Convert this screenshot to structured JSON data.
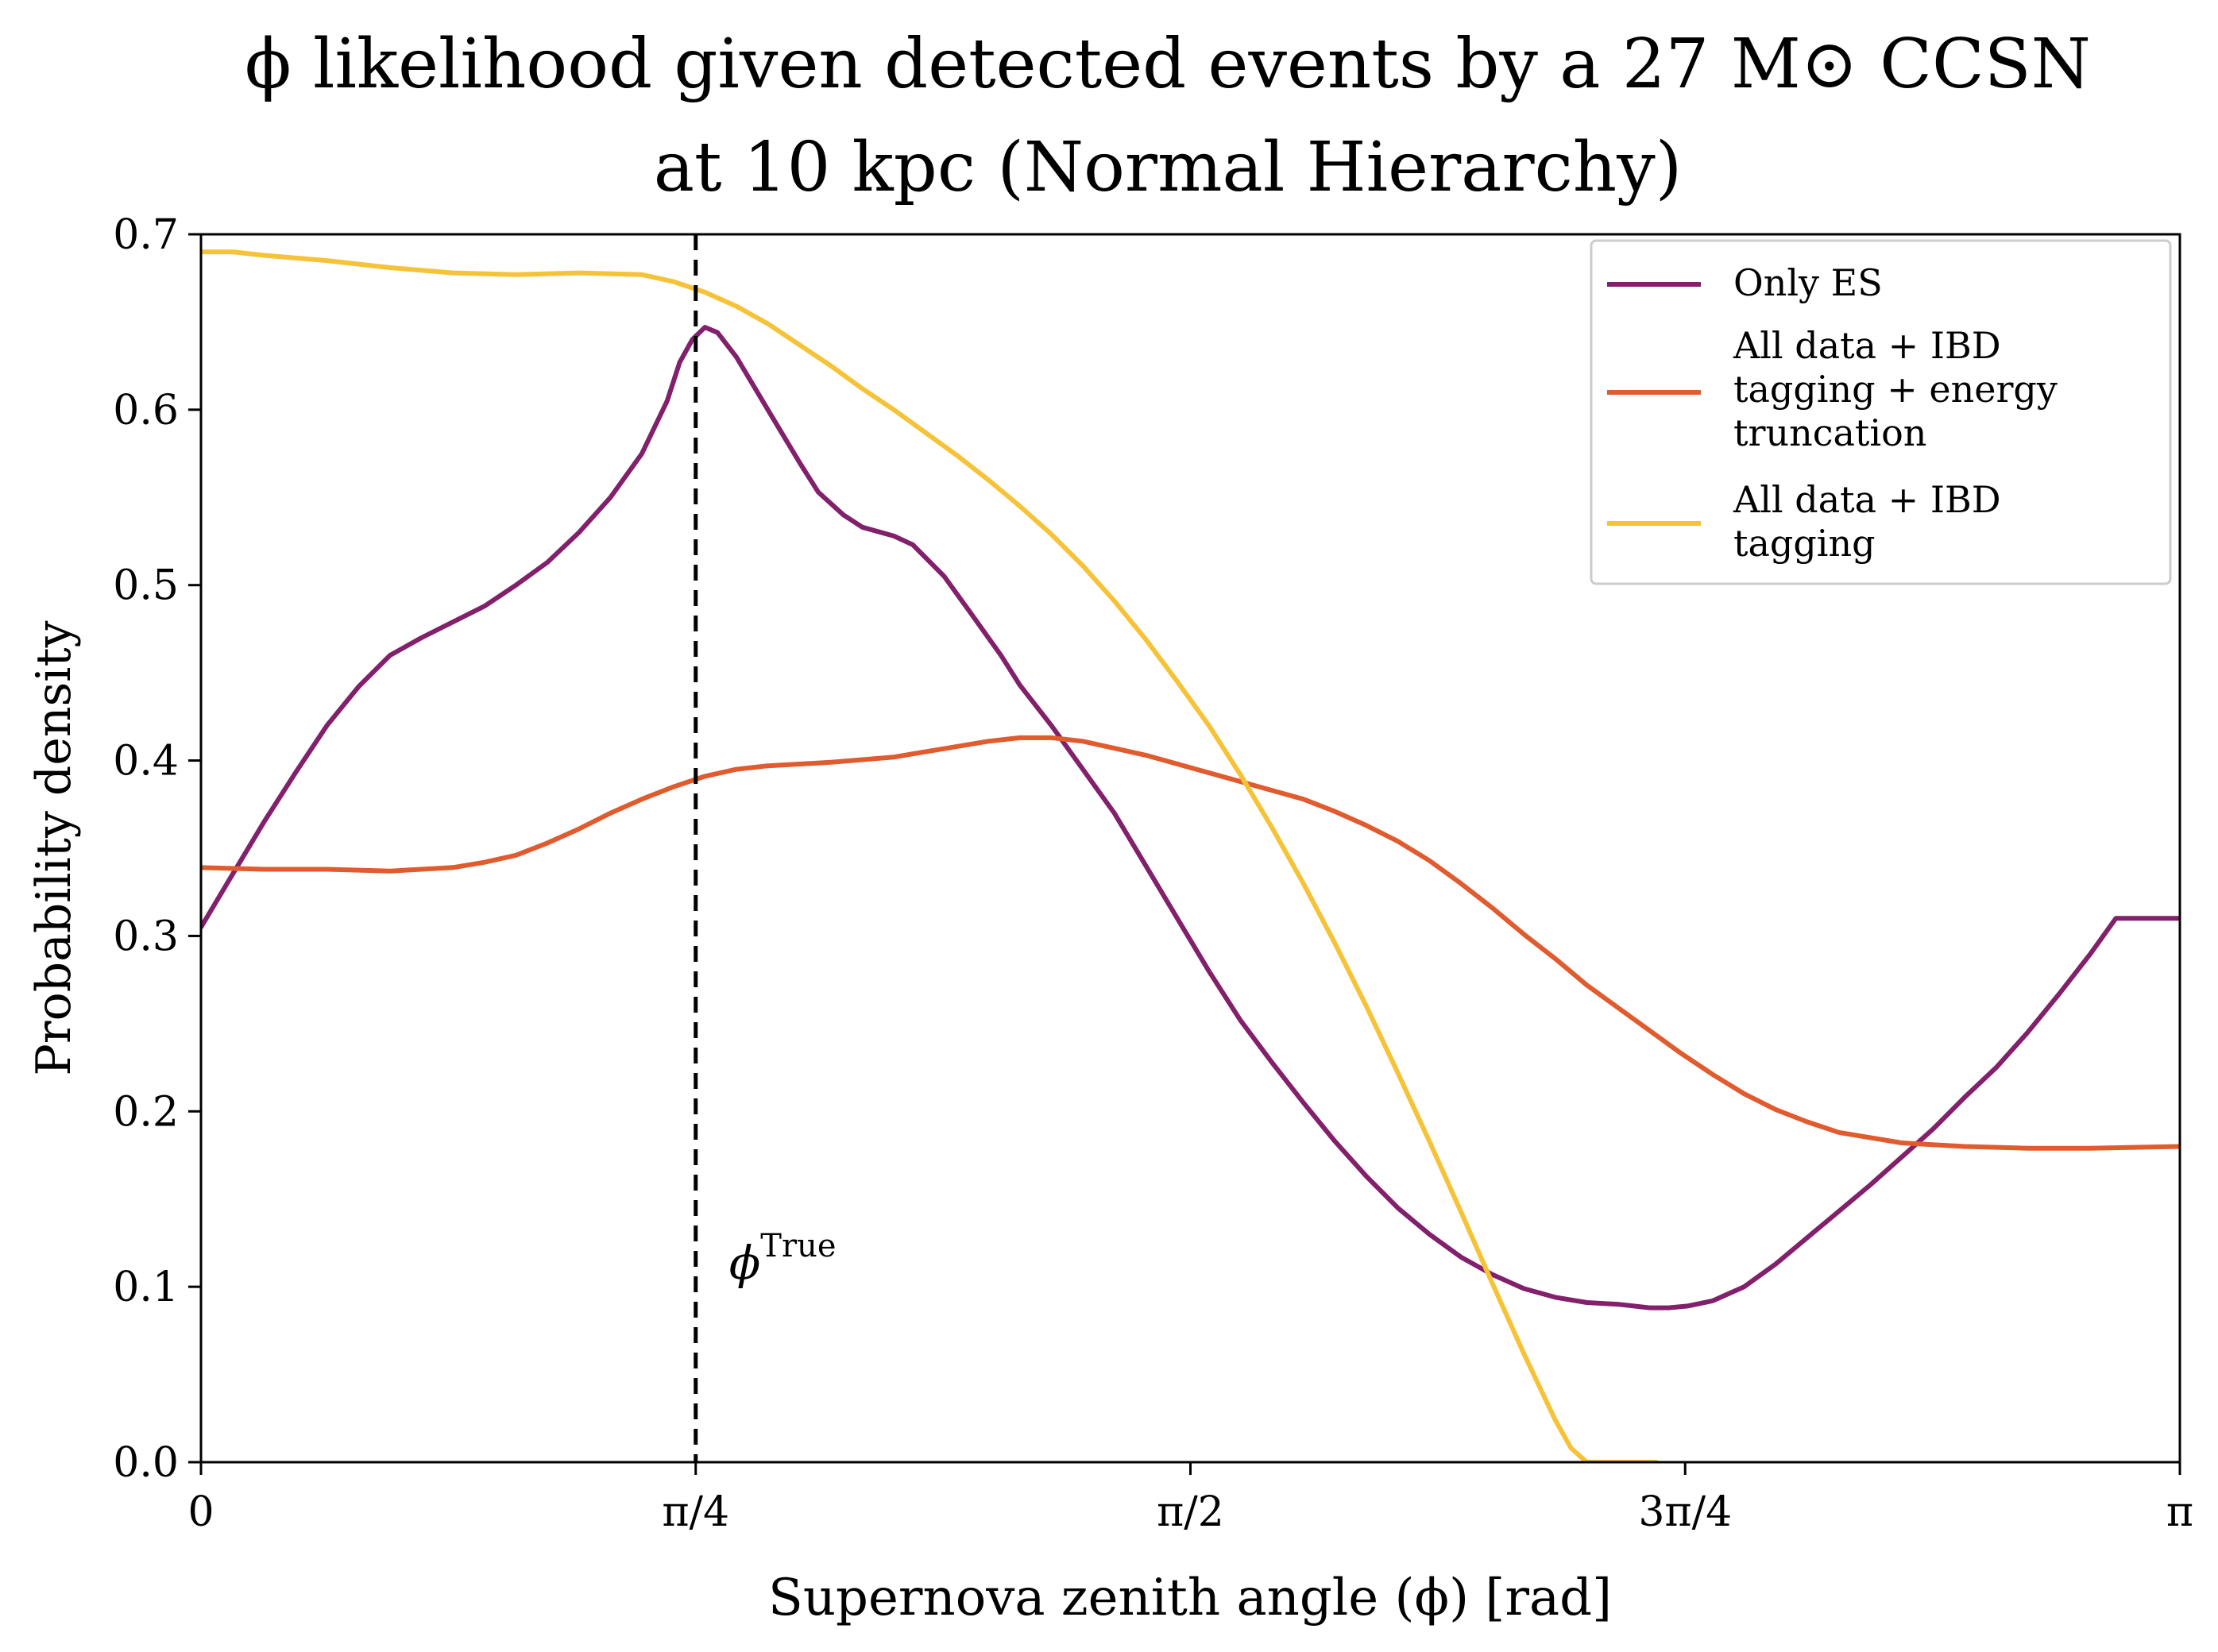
{
  "chart_data": {
    "type": "line",
    "title_line1": "ϕ likelihood given detected events by a 27 M⊙ CCSN",
    "title_line2": "at 10 kpc (Normal Hierarchy)",
    "xlabel": "Supernova zenith angle (ϕ) [rad]",
    "ylabel": "Probability density",
    "xlim": [
      0,
      3.14159
    ],
    "ylim": [
      0,
      0.7
    ],
    "x_ticks": [
      {
        "value": 0,
        "label": "0"
      },
      {
        "value": 0.785398,
        "label": "π/4"
      },
      {
        "value": 1.570796,
        "label": "π/2"
      },
      {
        "value": 2.356194,
        "label": "3π/4"
      },
      {
        "value": 3.141593,
        "label": "π"
      }
    ],
    "y_ticks": [
      {
        "value": 0.0,
        "label": "0.0"
      },
      {
        "value": 0.1,
        "label": "0.1"
      },
      {
        "value": 0.2,
        "label": "0.2"
      },
      {
        "value": 0.3,
        "label": "0.3"
      },
      {
        "value": 0.4,
        "label": "0.4"
      },
      {
        "value": 0.5,
        "label": "0.5"
      },
      {
        "value": 0.6,
        "label": "0.6"
      },
      {
        "value": 0.7,
        "label": "0.7"
      }
    ],
    "legend_position": "top-right",
    "grid": false,
    "true_line": {
      "x": 0.785398,
      "label_main": "ϕ",
      "label_sup": "True",
      "label_y": 0.11,
      "color": "#000000"
    },
    "series": [
      {
        "name": "Only ES",
        "color": "#82206c",
        "points": [
          [
            0.0,
            0.305
          ],
          [
            0.05,
            0.335
          ],
          [
            0.1,
            0.365
          ],
          [
            0.15,
            0.393
          ],
          [
            0.2,
            0.42
          ],
          [
            0.25,
            0.442
          ],
          [
            0.3,
            0.46
          ],
          [
            0.35,
            0.47
          ],
          [
            0.4,
            0.479
          ],
          [
            0.45,
            0.488
          ],
          [
            0.5,
            0.5
          ],
          [
            0.55,
            0.513
          ],
          [
            0.6,
            0.53
          ],
          [
            0.65,
            0.55
          ],
          [
            0.7,
            0.575
          ],
          [
            0.74,
            0.605
          ],
          [
            0.76,
            0.627
          ],
          [
            0.78,
            0.64
          ],
          [
            0.8,
            0.647
          ],
          [
            0.82,
            0.644
          ],
          [
            0.85,
            0.63
          ],
          [
            0.9,
            0.6
          ],
          [
            0.95,
            0.57
          ],
          [
            0.98,
            0.553
          ],
          [
            1.02,
            0.54
          ],
          [
            1.05,
            0.533
          ],
          [
            1.1,
            0.528
          ],
          [
            1.13,
            0.523
          ],
          [
            1.18,
            0.505
          ],
          [
            1.22,
            0.485
          ],
          [
            1.27,
            0.46
          ],
          [
            1.3,
            0.443
          ],
          [
            1.35,
            0.42
          ],
          [
            1.4,
            0.395
          ],
          [
            1.45,
            0.37
          ],
          [
            1.5,
            0.34
          ],
          [
            1.55,
            0.31
          ],
          [
            1.6,
            0.28
          ],
          [
            1.65,
            0.252
          ],
          [
            1.7,
            0.228
          ],
          [
            1.75,
            0.205
          ],
          [
            1.8,
            0.183
          ],
          [
            1.85,
            0.163
          ],
          [
            1.9,
            0.145
          ],
          [
            1.95,
            0.13
          ],
          [
            2.0,
            0.117
          ],
          [
            2.05,
            0.107
          ],
          [
            2.1,
            0.099
          ],
          [
            2.15,
            0.094
          ],
          [
            2.2,
            0.091
          ],
          [
            2.25,
            0.09
          ],
          [
            2.3,
            0.088
          ],
          [
            2.33,
            0.088
          ],
          [
            2.36,
            0.089
          ],
          [
            2.4,
            0.092
          ],
          [
            2.45,
            0.1
          ],
          [
            2.5,
            0.113
          ],
          [
            2.55,
            0.128
          ],
          [
            2.6,
            0.143
          ],
          [
            2.65,
            0.158
          ],
          [
            2.7,
            0.174
          ],
          [
            2.75,
            0.19
          ],
          [
            2.8,
            0.208
          ],
          [
            2.85,
            0.225
          ],
          [
            2.9,
            0.245
          ],
          [
            2.95,
            0.267
          ],
          [
            3.0,
            0.29
          ],
          [
            3.04,
            0.31
          ],
          [
            3.1416,
            0.31
          ]
        ]
      },
      {
        "name": "All data + IBD tagging + energy truncation",
        "label_lines": [
          "All data + IBD",
          "tagging + energy",
          "truncation"
        ],
        "color": "#e05b2e",
        "points": [
          [
            0.0,
            0.339
          ],
          [
            0.1,
            0.338
          ],
          [
            0.2,
            0.338
          ],
          [
            0.3,
            0.337
          ],
          [
            0.4,
            0.339
          ],
          [
            0.45,
            0.342
          ],
          [
            0.5,
            0.346
          ],
          [
            0.55,
            0.353
          ],
          [
            0.6,
            0.361
          ],
          [
            0.65,
            0.37
          ],
          [
            0.7,
            0.378
          ],
          [
            0.75,
            0.385
          ],
          [
            0.8,
            0.391
          ],
          [
            0.85,
            0.395
          ],
          [
            0.9,
            0.397
          ],
          [
            1.0,
            0.399
          ],
          [
            1.1,
            0.402
          ],
          [
            1.2,
            0.408
          ],
          [
            1.25,
            0.411
          ],
          [
            1.3,
            0.413
          ],
          [
            1.35,
            0.413
          ],
          [
            1.4,
            0.411
          ],
          [
            1.45,
            0.407
          ],
          [
            1.5,
            0.403
          ],
          [
            1.6,
            0.393
          ],
          [
            1.7,
            0.383
          ],
          [
            1.75,
            0.378
          ],
          [
            1.8,
            0.371
          ],
          [
            1.85,
            0.363
          ],
          [
            1.9,
            0.354
          ],
          [
            1.95,
            0.343
          ],
          [
            2.0,
            0.33
          ],
          [
            2.05,
            0.316
          ],
          [
            2.1,
            0.301
          ],
          [
            2.15,
            0.287
          ],
          [
            2.2,
            0.272
          ],
          [
            2.25,
            0.259
          ],
          [
            2.3,
            0.246
          ],
          [
            2.35,
            0.233
          ],
          [
            2.4,
            0.221
          ],
          [
            2.45,
            0.21
          ],
          [
            2.5,
            0.201
          ],
          [
            2.55,
            0.194
          ],
          [
            2.6,
            0.188
          ],
          [
            2.7,
            0.182
          ],
          [
            2.8,
            0.18
          ],
          [
            2.9,
            0.179
          ],
          [
            3.0,
            0.179
          ],
          [
            3.1416,
            0.18
          ]
        ]
      },
      {
        "name": "All data + IBD tagging",
        "label_lines": [
          "All data + IBD",
          "tagging"
        ],
        "color": "#f6c338",
        "points": [
          [
            0.0,
            0.69
          ],
          [
            0.05,
            0.69
          ],
          [
            0.1,
            0.688
          ],
          [
            0.2,
            0.685
          ],
          [
            0.3,
            0.681
          ],
          [
            0.4,
            0.678
          ],
          [
            0.5,
            0.677
          ],
          [
            0.6,
            0.678
          ],
          [
            0.7,
            0.677
          ],
          [
            0.75,
            0.673
          ],
          [
            0.8,
            0.667
          ],
          [
            0.85,
            0.659
          ],
          [
            0.9,
            0.649
          ],
          [
            0.95,
            0.637
          ],
          [
            1.0,
            0.625
          ],
          [
            1.05,
            0.612
          ],
          [
            1.1,
            0.6
          ],
          [
            1.15,
            0.587
          ],
          [
            1.2,
            0.574
          ],
          [
            1.25,
            0.56
          ],
          [
            1.3,
            0.545
          ],
          [
            1.35,
            0.529
          ],
          [
            1.4,
            0.511
          ],
          [
            1.45,
            0.491
          ],
          [
            1.5,
            0.469
          ],
          [
            1.55,
            0.445
          ],
          [
            1.6,
            0.42
          ],
          [
            1.65,
            0.392
          ],
          [
            1.7,
            0.362
          ],
          [
            1.75,
            0.33
          ],
          [
            1.8,
            0.296
          ],
          [
            1.85,
            0.26
          ],
          [
            1.9,
            0.222
          ],
          [
            1.95,
            0.183
          ],
          [
            2.0,
            0.143
          ],
          [
            2.05,
            0.102
          ],
          [
            2.1,
            0.062
          ],
          [
            2.15,
            0.024
          ],
          [
            2.175,
            0.008
          ],
          [
            2.2,
            0.0
          ],
          [
            2.31,
            0.0
          ]
        ]
      }
    ]
  }
}
